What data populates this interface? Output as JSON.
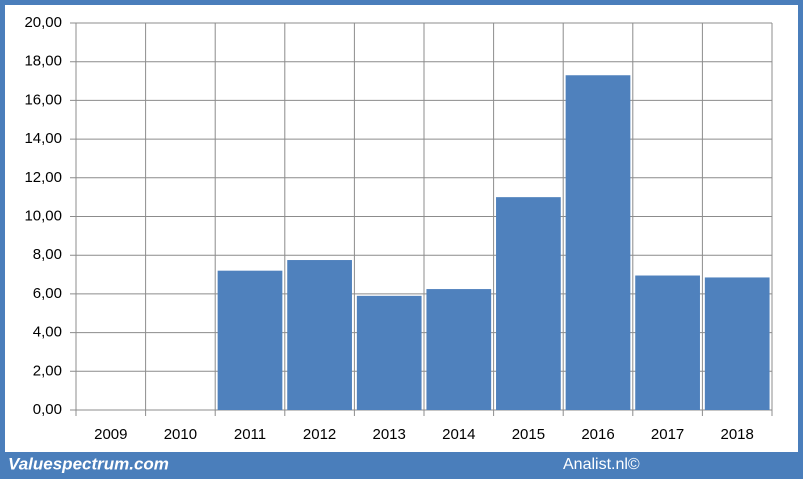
{
  "chart_data": {
    "type": "bar",
    "categories": [
      "2009",
      "2010",
      "2011",
      "2012",
      "2013",
      "2014",
      "2015",
      "2016",
      "2017",
      "2018"
    ],
    "values": [
      null,
      null,
      7.2,
      7.75,
      5.9,
      6.25,
      11.0,
      17.3,
      6.95,
      6.85
    ],
    "color": "#4f81bd",
    "ylim": [
      0,
      20
    ],
    "yticks": [
      {
        "value": 0,
        "label": "0,00"
      },
      {
        "value": 2,
        "label": "2,00"
      },
      {
        "value": 4,
        "label": "4,00"
      },
      {
        "value": 6,
        "label": "6,00"
      },
      {
        "value": 8,
        "label": "8,00"
      },
      {
        "value": 10,
        "label": "10,00"
      },
      {
        "value": 12,
        "label": "12,00"
      },
      {
        "value": 14,
        "label": "14,00"
      },
      {
        "value": 16,
        "label": "16,00"
      },
      {
        "value": 18,
        "label": "18,00"
      },
      {
        "value": 20,
        "label": "20,00"
      }
    ],
    "grid": true
  },
  "footer": {
    "left": "Valuespectrum.com",
    "right": "Analist.nl©"
  }
}
